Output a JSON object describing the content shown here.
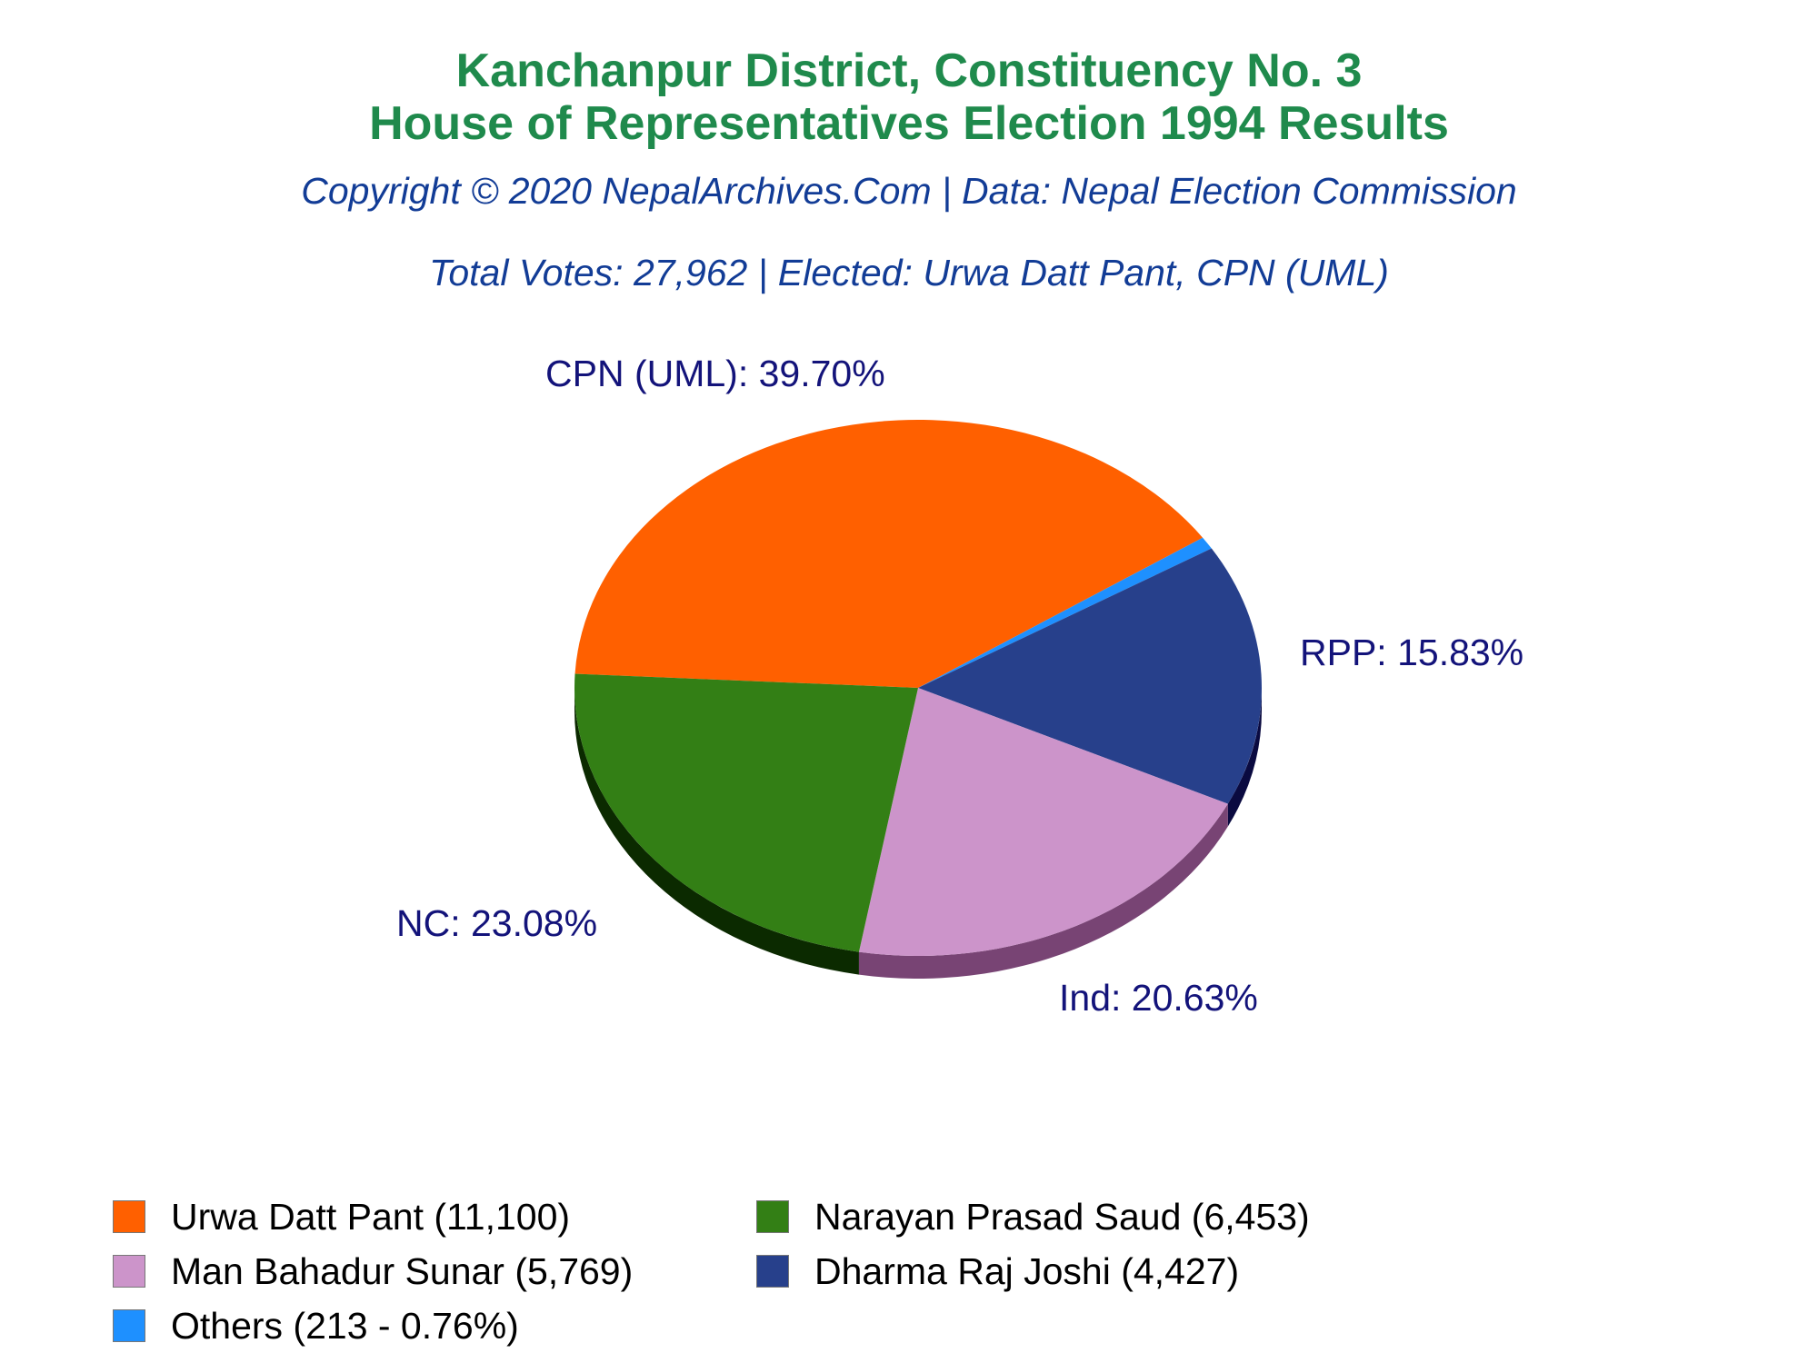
{
  "header": {
    "title_line1": "Kanchanpur District, Constituency No. 3",
    "title_line2": "House of Representatives Election 1994 Results",
    "copyright": "Copyright © 2020 NepalArchives.Com | Data: Nepal Election Commission",
    "summary": "Total Votes: 27,962 | Elected: Urwa Datt Pant, CPN (UML)"
  },
  "chart_data": {
    "type": "pie",
    "title": "Kanchanpur District, Constituency No. 3 House of Representatives Election 1994 Results",
    "slices": [
      {
        "label": "CPN (UML): 39.70%",
        "value": 39.7,
        "color": "#ff6000",
        "shade": "#a03a00"
      },
      {
        "label": "",
        "value": 0.76,
        "color": "#1e90ff",
        "shade": "#0b4a8a"
      },
      {
        "label": "RPP: 15.83%",
        "value": 15.83,
        "color": "#27408b",
        "shade": "#0a0a40"
      },
      {
        "label": "Ind: 20.63%",
        "value": 20.63,
        "color": "#cc94ca",
        "shade": "#784474"
      },
      {
        "label": "NC: 23.08%",
        "value": 23.08,
        "color": "#337f15",
        "shade": "#0b2a00"
      }
    ],
    "legend_placement": "bottom"
  },
  "legend": {
    "items": [
      {
        "text": "Urwa Datt Pant (11,100)",
        "color": "#ff6000"
      },
      {
        "text": "Narayan Prasad Saud (6,453)",
        "color": "#337f15"
      },
      {
        "text": "Man Bahadur Sunar (5,769)",
        "color": "#cc94ca"
      },
      {
        "text": "Dharma Raj Joshi (4,427)",
        "color": "#27408b"
      },
      {
        "text": "Others (213 - 0.76%)",
        "color": "#1e90ff"
      }
    ]
  }
}
